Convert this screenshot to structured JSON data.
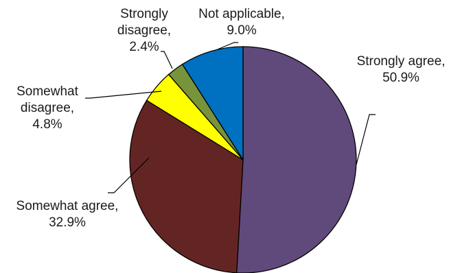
{
  "chart_data": {
    "type": "pie",
    "title": "",
    "slices": [
      {
        "label_lines": [
          "Strongly agree,",
          "50.9%"
        ],
        "name": "Strongly agree",
        "value": 50.9,
        "color": "#604a7b"
      },
      {
        "label_lines": [
          "Somewhat agree,",
          "32.9%"
        ],
        "name": "Somewhat agree",
        "value": 32.9,
        "color": "#632523"
      },
      {
        "label_lines": [
          "Somewhat",
          "disagree,",
          "4.8%"
        ],
        "name": "Somewhat disagree",
        "value": 4.8,
        "color": "#ffff00"
      },
      {
        "label_lines": [
          "Strongly",
          "disagree,",
          "2.4%"
        ],
        "name": "Strongly disagree",
        "value": 2.4,
        "color": "#77933c"
      },
      {
        "label_lines": [
          "Not applicable,",
          "9.0%"
        ],
        "name": "Not applicable",
        "value": 9.0,
        "color": "#0070c0"
      }
    ],
    "legend": "none",
    "start_angle": "12 o'clock",
    "direction": "clockwise"
  }
}
